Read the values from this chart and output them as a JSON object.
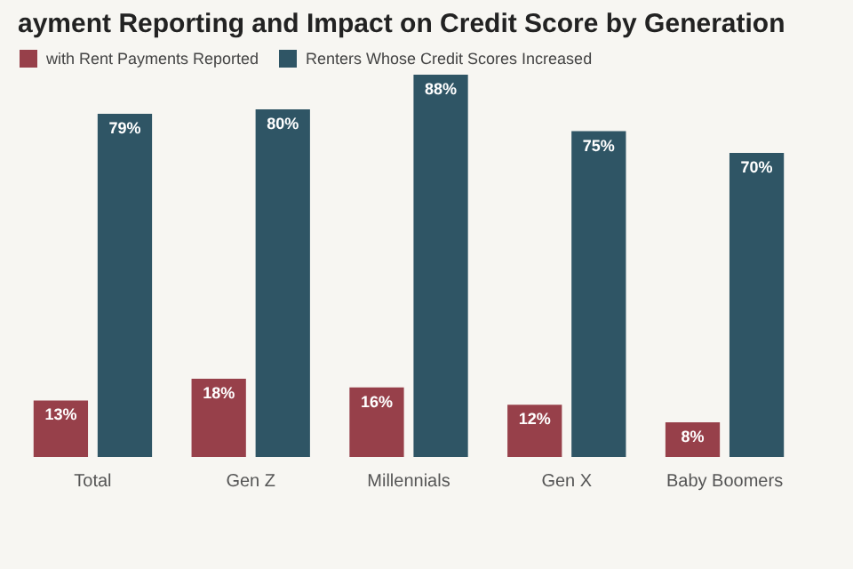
{
  "chart_data": {
    "type": "bar",
    "title": "ayment Reporting and Impact on Credit Score by Generation",
    "categories": [
      "Total",
      "Gen Z",
      "Millennials",
      "Gen X",
      "Baby Boomers"
    ],
    "series": [
      {
        "name": "with Rent Payments Reported",
        "color": "#97404a",
        "values": [
          13,
          18,
          16,
          12,
          8
        ],
        "value_labels": [
          "13%",
          "18%",
          "16%",
          "12%",
          "8%"
        ]
      },
      {
        "name": "Renters Whose Credit Scores Increased",
        "color": "#2f5565",
        "values": [
          79,
          80,
          88,
          75,
          70
        ],
        "value_labels": [
          "79%",
          "80%",
          "88%",
          "75%",
          "70%"
        ]
      }
    ],
    "legend": "top left",
    "grid": false
  }
}
